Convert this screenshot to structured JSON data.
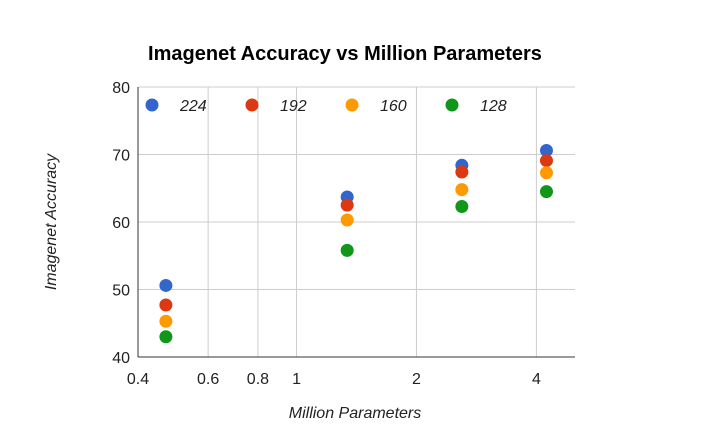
{
  "chart_data": {
    "type": "scatter",
    "title": "Imagenet Accuracy vs Million Parameters",
    "xlabel": "Million Parameters",
    "ylabel": "Imagenet Accuracy",
    "x_scale": "log",
    "xlim": [
      0.4,
      5.0
    ],
    "ylim": [
      40,
      80
    ],
    "x_ticks": [
      0.4,
      0.6,
      0.8,
      1,
      2,
      4
    ],
    "x_tick_labels": [
      "0.4",
      "0.6",
      "0.8",
      "1",
      "2",
      "4"
    ],
    "y_ticks": [
      40,
      50,
      60,
      70,
      80
    ],
    "y_tick_labels": [
      "40",
      "50",
      "60",
      "70",
      "80"
    ],
    "grid": true,
    "legend_position": "top",
    "series": [
      {
        "name": "224",
        "color": "#3366cc",
        "points": [
          {
            "x": 0.47,
            "y": 50.6
          },
          {
            "x": 1.34,
            "y": 63.7
          },
          {
            "x": 2.6,
            "y": 68.4
          },
          {
            "x": 4.24,
            "y": 70.6
          }
        ]
      },
      {
        "name": "192",
        "color": "#dc3912",
        "points": [
          {
            "x": 0.47,
            "y": 47.7
          },
          {
            "x": 1.34,
            "y": 62.5
          },
          {
            "x": 2.6,
            "y": 67.4
          },
          {
            "x": 4.24,
            "y": 69.1
          }
        ]
      },
      {
        "name": "160",
        "color": "#ff9900",
        "points": [
          {
            "x": 0.47,
            "y": 45.3
          },
          {
            "x": 1.34,
            "y": 60.3
          },
          {
            "x": 2.6,
            "y": 64.8
          },
          {
            "x": 4.24,
            "y": 67.3
          }
        ]
      },
      {
        "name": "128",
        "color": "#109618",
        "points": [
          {
            "x": 0.47,
            "y": 43.0
          },
          {
            "x": 1.34,
            "y": 55.8
          },
          {
            "x": 2.6,
            "y": 62.3
          },
          {
            "x": 4.24,
            "y": 64.5
          }
        ]
      }
    ]
  }
}
